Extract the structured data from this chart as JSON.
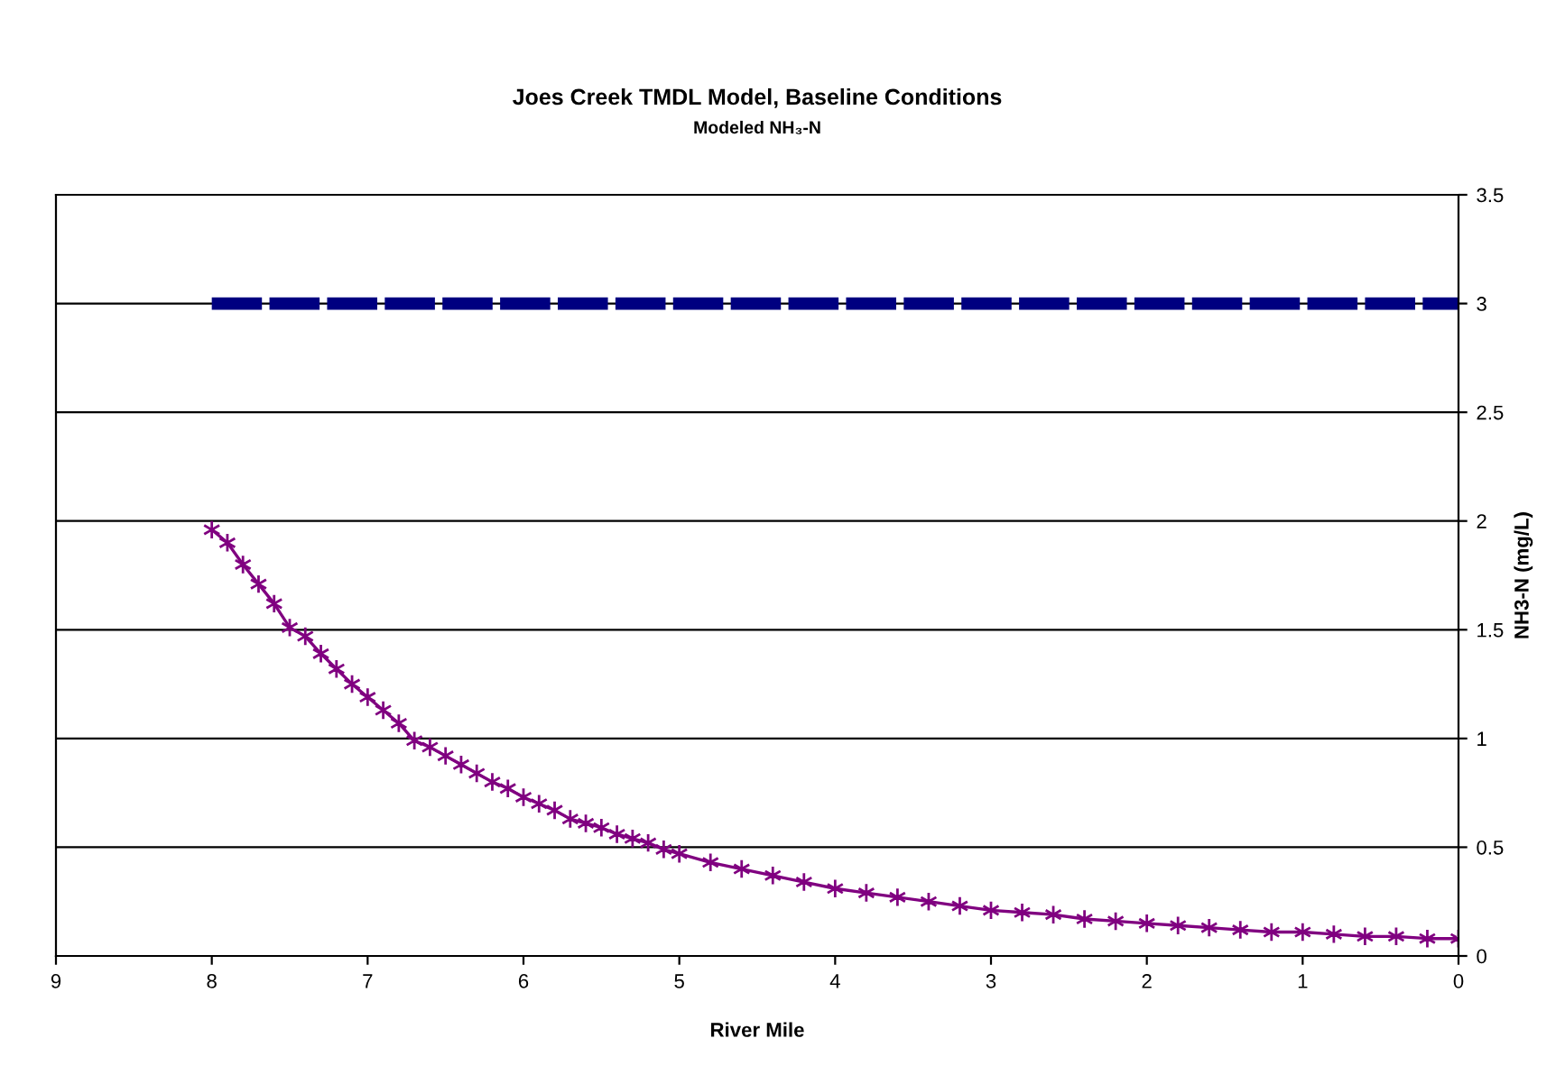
{
  "chart_data": {
    "type": "line",
    "title": "Joes Creek TMDL Model, Baseline Conditions",
    "subtitle": "Modeled NH₃-N",
    "xlabel": "River Mile",
    "ylabel": "NH3-N (mg/L)",
    "series": [
      {
        "color": "#000080",
        "x": [
          8,
          0
        ],
        "values": [
          3,
          3
        ],
        "line_style": "dashed",
        "marker": "none"
      },
      {
        "color": "#800080",
        "marker": "cross",
        "line_style": "solid",
        "x": [
          8,
          7.9,
          7.8,
          7.7,
          7.6,
          7.5,
          7.4,
          7.3,
          7.2,
          7.1,
          7.0,
          6.9,
          6.8,
          6.7,
          6.6,
          6.5,
          6.4,
          6.3,
          6.2,
          6.1,
          6.0,
          5.9,
          5.8,
          5.7,
          5.6,
          5.5,
          5.4,
          5.3,
          5.2,
          5.1,
          5.0,
          4.8,
          4.6,
          4.4,
          4.2,
          4.0,
          3.8,
          3.6,
          3.4,
          3.2,
          3.0,
          2.8,
          2.6,
          2.4,
          2.2,
          2.0,
          1.8,
          1.6,
          1.4,
          1.2,
          1.0,
          0.8,
          0.6,
          0.4,
          0.2,
          0
        ],
        "values": [
          1.96,
          1.9,
          1.8,
          1.71,
          1.62,
          1.51,
          1.47,
          1.39,
          1.32,
          1.25,
          1.19,
          1.13,
          1.07,
          0.99,
          0.96,
          0.92,
          0.88,
          0.84,
          0.8,
          0.77,
          0.73,
          0.7,
          0.67,
          0.63,
          0.61,
          0.59,
          0.56,
          0.54,
          0.52,
          0.49,
          0.47,
          0.43,
          0.4,
          0.37,
          0.34,
          0.31,
          0.29,
          0.27,
          0.25,
          0.23,
          0.21,
          0.2,
          0.19,
          0.17,
          0.16,
          0.15,
          0.14,
          0.13,
          0.12,
          0.11,
          0.11,
          0.1,
          0.09,
          0.09,
          0.08,
          0.08
        ]
      }
    ],
    "xlim": [
      9,
      0
    ],
    "xticks": [
      9,
      8,
      7,
      6,
      5,
      4,
      3,
      2,
      1,
      0
    ],
    "ylim": [
      0,
      3.5
    ],
    "yticks": [
      0,
      0.5,
      1,
      1.5,
      2,
      2.5,
      3,
      3.5
    ],
    "grid": "y",
    "legend": false
  }
}
